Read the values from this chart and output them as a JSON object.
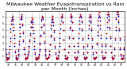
{
  "title": "Milwaukee Weather Evapotranspiration vs Rain per Month (Inches)",
  "title_fontsize": 4.5,
  "background_color": "#ffffff",
  "ylim": [
    0.0,
    8.0
  ],
  "yticks": [
    1,
    2,
    3,
    4,
    5,
    6,
    7
  ],
  "years": [
    "90",
    "91",
    "92",
    "93",
    "94",
    "95",
    "96",
    "97",
    "98",
    "99",
    "00",
    "01",
    "02",
    "03",
    "04",
    "05",
    "06",
    "07"
  ],
  "months_per_year": 12,
  "et_data": [
    2.0,
    1.2,
    0.6,
    0.4,
    0.5,
    0.8,
    1.5,
    2.5,
    3.8,
    5.2,
    6.5,
    7.0,
    6.8,
    6.0,
    5.0,
    3.8,
    2.5,
    1.5,
    0.8,
    0.5,
    0.4,
    0.6,
    1.0,
    1.8,
    2.8,
    4.0,
    5.5,
    6.8,
    7.2,
    6.8,
    5.8,
    4.5,
    3.2,
    2.0,
    1.2,
    0.7,
    0.5,
    0.5,
    0.6,
    0.8,
    1.2,
    1.8,
    2.5,
    3.5,
    4.5,
    5.5,
    6.2,
    6.5,
    6.2,
    5.5,
    4.5,
    3.2,
    2.0,
    1.2,
    0.7,
    0.5,
    0.4,
    0.5,
    0.6,
    0.8,
    1.2,
    2.0,
    3.0,
    4.2,
    5.5,
    6.5,
    7.0,
    6.8,
    5.8,
    4.5,
    3.0,
    1.8,
    1.0,
    0.6,
    0.5,
    0.5,
    0.6,
    0.8,
    1.2,
    1.8,
    2.8,
    4.0,
    5.2,
    6.2,
    6.8,
    6.5,
    5.8,
    4.8,
    3.5,
    2.2,
    1.2,
    0.7,
    0.5,
    0.5,
    0.6,
    1.0,
    1.5,
    2.5,
    3.8,
    5.2,
    6.5,
    7.2,
    7.0,
    6.2,
    5.0,
    3.5,
    2.0,
    1.0,
    0.6,
    0.5,
    0.5,
    0.6,
    0.8,
    1.5,
    2.5,
    3.8,
    5.2,
    6.5,
    7.2,
    7.0,
    6.2,
    5.0,
    3.8,
    2.5,
    1.5,
    0.8,
    0.5,
    0.4,
    0.5,
    0.8,
    1.5,
    2.5,
    3.8,
    5.2,
    6.5,
    7.2,
    7.0,
    6.2,
    5.0,
    3.5,
    2.2,
    1.2,
    0.7,
    0.5,
    0.5,
    0.6,
    0.8,
    1.5,
    2.5,
    3.8,
    5.2,
    6.5,
    7.2,
    7.0,
    6.2,
    5.0,
    3.5,
    2.2,
    1.2,
    0.7,
    0.5,
    0.5,
    0.6,
    0.8,
    1.5,
    2.8,
    4.2,
    5.8,
    7.0,
    7.2,
    6.5,
    5.2,
    3.8,
    2.5,
    1.5,
    0.8,
    0.5,
    0.5,
    0.6,
    0.8,
    1.5,
    2.5,
    3.8,
    5.5,
    7.0,
    7.5,
    7.2,
    6.5,
    5.2,
    3.8,
    2.5,
    1.5,
    0.8,
    0.5,
    0.5,
    0.6,
    1.0,
    2.0,
    3.5,
    5.0,
    6.8,
    7.5,
    7.8,
    7.2,
    6.2,
    5.0,
    3.5,
    2.0,
    1.0,
    0.6,
    0.5,
    0.5,
    0.6,
    1.0,
    2.0,
    3.5
  ],
  "rain_data": [
    1.5,
    0.8,
    0.5,
    0.4,
    0.5,
    0.7,
    1.2,
    2.0,
    3.2,
    4.8,
    6.0,
    6.8,
    7.2,
    6.5,
    5.5,
    4.2,
    3.0,
    1.8,
    1.0,
    0.6,
    0.5,
    0.7,
    1.2,
    2.0,
    3.2,
    4.5,
    6.0,
    7.0,
    7.5,
    7.0,
    6.0,
    4.8,
    3.5,
    2.2,
    1.2,
    0.6,
    0.5,
    0.5,
    0.6,
    0.8,
    1.0,
    1.5,
    2.2,
    3.2,
    4.2,
    5.5,
    6.5,
    7.0,
    6.8,
    6.0,
    5.0,
    3.8,
    2.5,
    1.5,
    0.8,
    0.5,
    0.4,
    0.5,
    0.6,
    0.8,
    1.0,
    1.8,
    2.8,
    4.0,
    5.5,
    6.8,
    7.2,
    7.0,
    6.0,
    4.8,
    3.2,
    2.0,
    1.2,
    0.7,
    0.5,
    0.5,
    0.6,
    0.8,
    1.0,
    1.8,
    2.8,
    4.2,
    5.8,
    6.8,
    7.2,
    7.0,
    6.2,
    5.0,
    3.8,
    2.5,
    1.5,
    0.8,
    0.5,
    0.5,
    0.6,
    1.0,
    1.8,
    3.0,
    4.5,
    6.0,
    7.0,
    7.5,
    7.2,
    6.2,
    5.0,
    3.5,
    2.0,
    1.0,
    0.6,
    0.5,
    0.5,
    0.6,
    0.8,
    1.5,
    2.5,
    4.0,
    5.5,
    7.0,
    7.5,
    7.2,
    6.2,
    5.0,
    3.8,
    2.5,
    1.5,
    0.8,
    0.5,
    0.4,
    0.5,
    0.8,
    1.8,
    3.0,
    4.5,
    6.0,
    7.0,
    7.5,
    7.2,
    6.5,
    5.2,
    3.8,
    2.5,
    1.5,
    0.8,
    0.5,
    0.5,
    0.6,
    0.8,
    1.5,
    2.8,
    4.2,
    5.8,
    7.0,
    7.5,
    7.2,
    6.5,
    5.2,
    3.8,
    2.5,
    1.5,
    0.8,
    0.5,
    0.5,
    0.6,
    0.8,
    1.5,
    3.0,
    4.8,
    6.5,
    7.5,
    7.8,
    7.0,
    5.8,
    4.2,
    2.8,
    1.8,
    1.0,
    0.6,
    0.5,
    0.6,
    0.8,
    1.5,
    2.8,
    4.5,
    6.2,
    7.5,
    7.8,
    7.5,
    6.8,
    5.5,
    4.0,
    2.5,
    1.5,
    0.8,
    0.5,
    0.5,
    0.6,
    1.0,
    2.2,
    3.8,
    5.5,
    7.0,
    7.8,
    8.0,
    7.5,
    6.5,
    5.2,
    3.8,
    2.2,
    1.2,
    0.7,
    0.5,
    0.5,
    0.6,
    1.0,
    2.2,
    4.0
  ],
  "et_color": "#0000cc",
  "rain_color": "#cc0000",
  "marker_size": 1.8,
  "grid_color": "#999999",
  "grid_linestyle": "--",
  "grid_linewidth": 0.4,
  "vline_color": "#aaaaaa"
}
